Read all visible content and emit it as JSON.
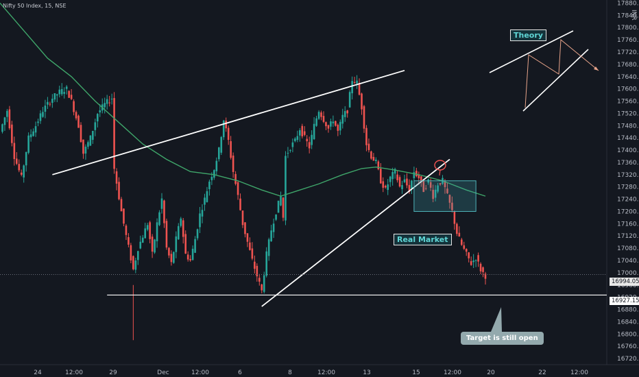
{
  "header": {
    "symbol_line": "Nifty 50 Index, 15, NSE"
  },
  "currency": "INR",
  "annotations": {
    "theory_label": "Theory",
    "real_market_label": "Real Market",
    "target_callout": "Target is still open"
  },
  "price_tags": {
    "last_price": "16994.05",
    "target_price": "16927.15"
  },
  "colors": {
    "background": "#141820",
    "up_candle": "#26a69a",
    "down_candle": "#ef5350",
    "moving_average": "#3fa66a",
    "trendlines": "#ffffff",
    "label_text": "#5fd6d6",
    "callout_bg": "#93a9ad"
  },
  "chart_data": {
    "type": "candlestick",
    "title": "Nifty 50 Index, 15, NSE",
    "y_axis": {
      "ticks": [
        "17880.00",
        "17840.00",
        "17800.00",
        "17760.00",
        "17720.00",
        "17680.00",
        "17640.00",
        "17600.00",
        "17560.00",
        "17520.00",
        "17480.00",
        "17440.00",
        "17400.00",
        "17360.00",
        "17320.00",
        "17280.00",
        "17240.00",
        "17200.00",
        "17160.00",
        "17120.00",
        "17080.00",
        "17040.00",
        "17000.00",
        "16960.00",
        "16920.00",
        "16880.00",
        "16840.00",
        "16800.00",
        "16760.00",
        "16720.00"
      ],
      "ylim": [
        16700,
        17890
      ],
      "side": "right"
    },
    "x_axis": {
      "ticks": [
        "24",
        "12:00",
        "29",
        "Dec",
        "12:00",
        "6",
        "8",
        "12:00",
        "13",
        "15",
        "12:00",
        "20",
        "22",
        "12:00"
      ]
    },
    "price_path": [
      [
        0,
        17460
      ],
      [
        3,
        17530
      ],
      [
        6,
        17380
      ],
      [
        9,
        17310
      ],
      [
        12,
        17440
      ],
      [
        15,
        17480
      ],
      [
        18,
        17530
      ],
      [
        22,
        17570
      ],
      [
        25,
        17590
      ],
      [
        28,
        17600
      ],
      [
        30,
        17560
      ],
      [
        33,
        17480
      ],
      [
        35,
        17390
      ],
      [
        38,
        17440
      ],
      [
        41,
        17520
      ],
      [
        44,
        17550
      ],
      [
        47,
        17570
      ],
      [
        48,
        17340
      ],
      [
        51,
        17200
      ],
      [
        53,
        17120
      ],
      [
        56,
        17010
      ],
      [
        58,
        17080
      ],
      [
        62,
        17160
      ],
      [
        64,
        17060
      ],
      [
        66,
        17160
      ],
      [
        68,
        17240
      ],
      [
        70,
        17080
      ],
      [
        72,
        17030
      ],
      [
        74,
        17110
      ],
      [
        76,
        17180
      ],
      [
        78,
        17060
      ],
      [
        80,
        17040
      ],
      [
        82,
        17110
      ],
      [
        84,
        17190
      ],
      [
        86,
        17240
      ],
      [
        88,
        17300
      ],
      [
        90,
        17340
      ],
      [
        92,
        17400
      ],
      [
        94,
        17500
      ],
      [
        96,
        17430
      ],
      [
        98,
        17330
      ],
      [
        100,
        17250
      ],
      [
        102,
        17160
      ],
      [
        104,
        17100
      ],
      [
        106,
        17040
      ],
      [
        108,
        16990
      ],
      [
        110,
        16940
      ],
      [
        112,
        17060
      ],
      [
        114,
        17140
      ],
      [
        116,
        17200
      ],
      [
        118,
        17250
      ],
      [
        119,
        17180
      ],
      [
        120,
        17380
      ],
      [
        122,
        17410
      ],
      [
        124,
        17430
      ],
      [
        126,
        17470
      ],
      [
        128,
        17440
      ],
      [
        130,
        17410
      ],
      [
        132,
        17480
      ],
      [
        134,
        17530
      ],
      [
        136,
        17500
      ],
      [
        138,
        17470
      ],
      [
        140,
        17500
      ],
      [
        142,
        17460
      ],
      [
        144,
        17510
      ],
      [
        146,
        17530
      ],
      [
        148,
        17630
      ],
      [
        150,
        17620
      ],
      [
        152,
        17540
      ],
      [
        154,
        17420
      ],
      [
        156,
        17380
      ],
      [
        158,
        17360
      ],
      [
        160,
        17300
      ],
      [
        162,
        17270
      ],
      [
        164,
        17310
      ],
      [
        166,
        17330
      ],
      [
        168,
        17280
      ],
      [
        170,
        17300
      ],
      [
        172,
        17270
      ],
      [
        174,
        17330
      ],
      [
        176,
        17310
      ],
      [
        178,
        17270
      ],
      [
        180,
        17300
      ],
      [
        182,
        17250
      ],
      [
        184,
        17290
      ],
      [
        186,
        17300
      ],
      [
        188,
        17250
      ],
      [
        190,
        17200
      ],
      [
        192,
        17130
      ],
      [
        194,
        17090
      ],
      [
        196,
        17060
      ],
      [
        198,
        17030
      ],
      [
        200,
        17050
      ],
      [
        202,
        17010
      ],
      [
        204,
        16990
      ]
    ],
    "moving_average_points": [
      [
        0,
        17880
      ],
      [
        10,
        17790
      ],
      [
        20,
        17700
      ],
      [
        30,
        17640
      ],
      [
        40,
        17560
      ],
      [
        50,
        17490
      ],
      [
        60,
        17420
      ],
      [
        70,
        17370
      ],
      [
        80,
        17330
      ],
      [
        90,
        17320
      ],
      [
        100,
        17300
      ],
      [
        110,
        17270
      ],
      [
        118,
        17250
      ],
      [
        124,
        17265
      ],
      [
        134,
        17290
      ],
      [
        144,
        17320
      ],
      [
        152,
        17340
      ],
      [
        158,
        17345
      ],
      [
        166,
        17335
      ],
      [
        176,
        17320
      ],
      [
        186,
        17300
      ],
      [
        196,
        17270
      ],
      [
        204,
        17250
      ]
    ],
    "trendlines": [
      {
        "name": "upper_rising",
        "from": [
          22,
          17320
        ],
        "to": [
          170,
          17660
        ]
      },
      {
        "name": "lower_rising",
        "from": [
          110,
          16890
        ],
        "to": [
          189,
          17370
        ]
      },
      {
        "name": "support_horizontal",
        "from": [
          45,
          16927.15
        ],
        "to": [
          255,
          16927.15
        ]
      }
    ],
    "consolidation_box": {
      "x": [
        174,
        200
      ],
      "y": [
        17200,
        17300
      ]
    },
    "last_price": 16994.05,
    "target_level": 16927.15
  }
}
